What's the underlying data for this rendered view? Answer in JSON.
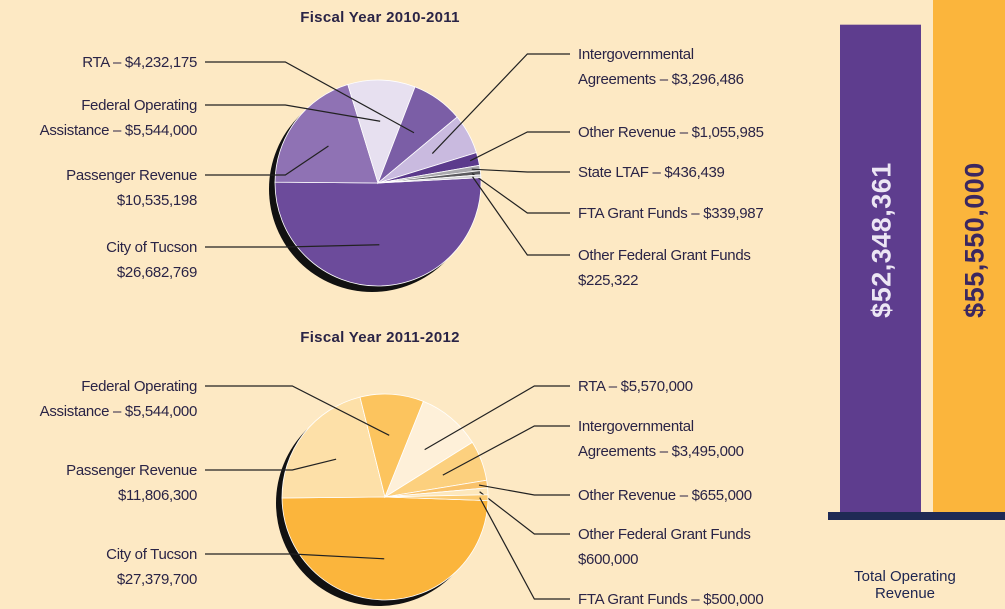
{
  "chart_data": [
    {
      "type": "pie",
      "title": "Fiscal Year 2010-2011",
      "labels": [
        "City of Tucson\n$26,682,769",
        "Passenger Revenue\n$10,535,198",
        "Federal Operating\nAssistance – $5,544,000",
        "RTA – $4,232,175",
        "Intergovernmental\nAgreements – $3,296,486",
        "Other Revenue – $1,055,985",
        "State LTAF – $436,439",
        "FTA Grant Funds – $339,987",
        "Other Federal Grant Funds\n$225,322"
      ],
      "values": [
        26682769,
        10535198,
        5544000,
        4232175,
        3296486,
        1055985,
        436439,
        339987,
        225322
      ],
      "colors": [
        "#6c4b9b",
        "#8f72b4",
        "#e7e0f0",
        "#7b5ea6",
        "#c9badf",
        "#5b3a8c",
        "#a9a9ad",
        "#5a5a5e",
        "#d0d0d4"
      ]
    },
    {
      "type": "pie",
      "title": "Fiscal Year 2011-2012",
      "labels": [
        "City of Tucson\n$27,379,700",
        "Passenger Revenue\n$11,806,300",
        "Federal Operating\nAssistance – $5,544,000",
        "RTA – $5,570,000",
        "Intergovernmental\nAgreements – $3,495,000",
        "Other Revenue – $655,000",
        "Other Federal Grant Funds\n$600,000",
        "FTA Grant Funds – $500,000"
      ],
      "values": [
        27379700,
        11806300,
        5544000,
        5570000,
        3495000,
        655000,
        600000,
        500000
      ],
      "colors": [
        "#fbb53c",
        "#fde0a8",
        "#fcc45e",
        "#fef0d9",
        "#fcd07e",
        "#f9c26a",
        "#fde7bb",
        "#fbca70"
      ]
    },
    {
      "type": "bar",
      "x_label": "Total Operating Revenue",
      "values": [
        52348361,
        55550000
      ],
      "value_labels": [
        "$52,348,361",
        "$55,550,000"
      ],
      "colors": [
        "#5e3d8e",
        "#fbb53c"
      ],
      "ylim": [
        0,
        55000000
      ]
    }
  ]
}
